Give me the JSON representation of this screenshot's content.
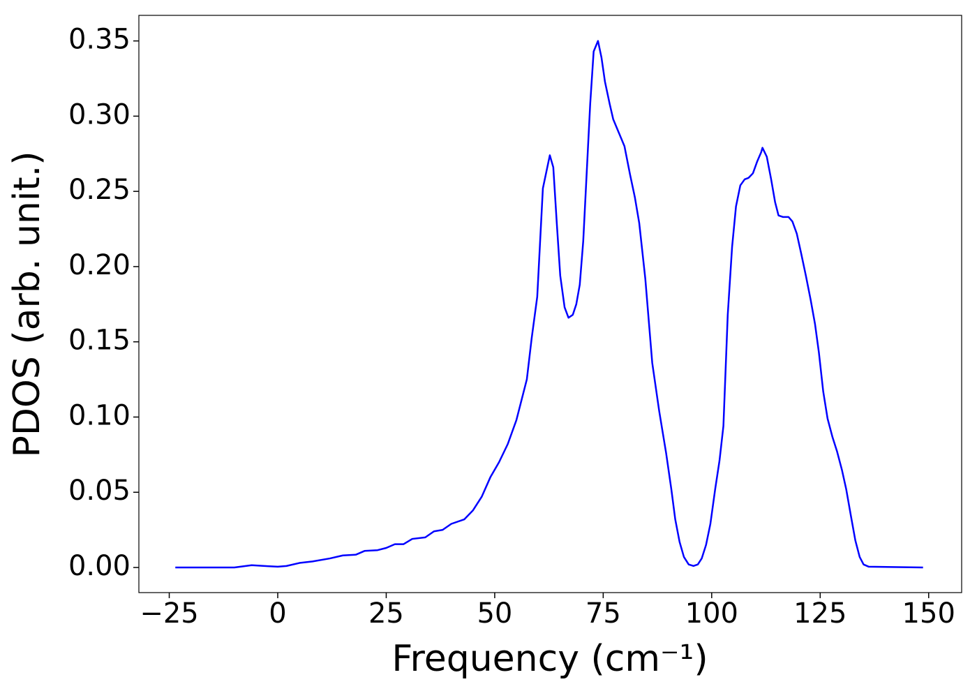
{
  "chart_data": {
    "type": "line",
    "xlabel": "Frequency (cm⁻¹)",
    "ylabel": "PDOS (arb. unit.)",
    "xlim": [
      -32.0,
      157.6
    ],
    "ylim": [
      -0.0167,
      0.367
    ],
    "xticks": [
      {
        "value": -25,
        "label": "−25"
      },
      0,
      25,
      50,
      75,
      100,
      125,
      150
    ],
    "yticks": [
      {
        "value": 0,
        "label": "0.00"
      },
      {
        "value": 0.05,
        "label": "0.05"
      },
      {
        "value": 0.1,
        "label": "0.10"
      },
      {
        "value": 0.15,
        "label": "0.15"
      },
      {
        "value": 0.2,
        "label": "0.20"
      },
      {
        "value": 0.25,
        "label": "0.25"
      },
      {
        "value": 0.3,
        "label": "0.30"
      },
      {
        "value": 0.35,
        "label": "0.35"
      }
    ],
    "series": [
      {
        "color": "#0000ff",
        "x": [
          -23.6,
          -15,
          -10,
          -6,
          -3,
          0,
          2,
          5,
          8,
          12,
          15,
          18,
          20,
          23,
          25,
          27,
          29,
          31,
          34,
          36,
          38,
          40,
          43,
          45,
          47,
          49,
          51,
          53,
          55.0,
          57.4,
          58.5,
          59.8,
          61.1,
          62.7,
          63.5,
          64.3,
          65.1,
          66.1,
          67.0,
          68.0,
          68.8,
          69.6,
          70.4,
          72.0,
          72.8,
          73.8,
          74.6,
          75.4,
          76.5,
          77.3,
          78.6,
          79.9,
          81.2,
          82.3,
          83.3,
          84.7,
          86.3,
          87.9,
          89.5,
          90.7,
          91.6,
          92.6,
          93.6,
          94.7,
          95.8,
          96.8,
          97.7,
          98.7,
          99.7,
          100.8,
          101.8,
          102.7,
          103.7,
          104.7,
          105.6,
          106.6,
          107.6,
          108.5,
          109.5,
          110.5,
          111.4,
          111.7,
          112.7,
          113.7,
          114.6,
          115.4,
          116.4,
          117.7,
          118.6,
          119.6,
          120.6,
          121.7,
          122.8,
          123.8,
          124.7,
          125.7,
          126.7,
          127.8,
          128.9,
          130.0,
          131.0,
          132.1,
          133.1,
          134.1,
          135.0,
          136.2,
          148.7
        ],
        "values": [
          0,
          0,
          0,
          0.0015,
          0.001,
          0.0005,
          0.001,
          0.003,
          0.004,
          0.006,
          0.008,
          0.0085,
          0.011,
          0.0115,
          0.013,
          0.0155,
          0.0155,
          0.019,
          0.02,
          0.024,
          0.025,
          0.029,
          0.032,
          0.038,
          0.047,
          0.06,
          0.07,
          0.082,
          0.098,
          0.125,
          0.152,
          0.18,
          0.252,
          0.274,
          0.266,
          0.229,
          0.194,
          0.173,
          0.166,
          0.168,
          0.175,
          0.188,
          0.217,
          0.308,
          0.343,
          0.35,
          0.339,
          0.323,
          0.308,
          0.298,
          0.289,
          0.28,
          0.261,
          0.246,
          0.229,
          0.192,
          0.136,
          0.104,
          0.076,
          0.052,
          0.032,
          0.017,
          0.007,
          0.002,
          0.001,
          0.002,
          0.006,
          0.015,
          0.029,
          0.052,
          0.071,
          0.094,
          0.168,
          0.213,
          0.24,
          0.254,
          0.258,
          0.259,
          0.262,
          0.27,
          0.276,
          0.279,
          0.273,
          0.258,
          0.243,
          0.234,
          0.233,
          0.233,
          0.23,
          0.222,
          0.209,
          0.194,
          0.178,
          0.162,
          0.143,
          0.117,
          0.099,
          0.087,
          0.077,
          0.065,
          0.052,
          0.034,
          0.018,
          0.007,
          0.002,
          0.0005,
          0
        ]
      }
    ]
  }
}
